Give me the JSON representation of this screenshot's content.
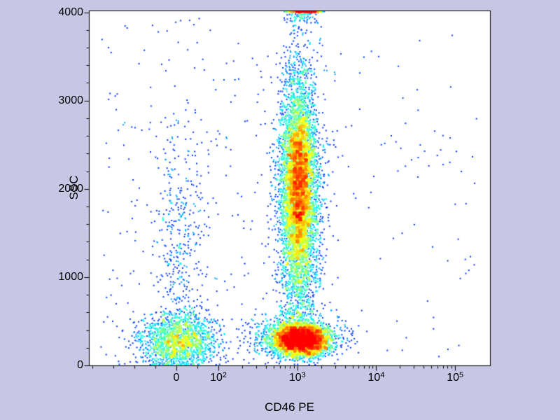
{
  "figure": {
    "background_color": "#c7c7e5",
    "plot_background": "#ffffff",
    "border_color": "#000000"
  },
  "chart_data": {
    "type": "scatter",
    "subtype": "flow-cytometry-pseudocolor-density",
    "title": "",
    "xlabel": "CD46 PE",
    "ylabel": "SSC",
    "legend": "none",
    "grid": false,
    "x_axis": {
      "scale": "biexponential",
      "linear_zero_frac": 0.218,
      "frac_at_100": 0.323,
      "decade_frac": 0.1967,
      "ticks": [
        {
          "value": 0,
          "label": "0"
        },
        {
          "value": 100,
          "base": "10",
          "exp": "2"
        },
        {
          "value": 1000,
          "base": "10",
          "exp": "3"
        },
        {
          "value": 10000,
          "base": "10",
          "exp": "4"
        },
        {
          "value": 100000,
          "base": "10",
          "exp": "5"
        }
      ],
      "minor_linear_step": 50,
      "minor_log_decades": [
        2,
        3,
        4
      ]
    },
    "y_axis": {
      "scale": "linear",
      "min": 0,
      "max": 4020,
      "ticks": [
        {
          "value": 0,
          "label": "0"
        },
        {
          "value": 1000,
          "label": "1000"
        },
        {
          "value": 2000,
          "label": "2000"
        },
        {
          "value": 3000,
          "label": "3000"
        },
        {
          "value": 4000,
          "label": "4000"
        }
      ],
      "minor_step": 200
    },
    "colormap": "jet",
    "density_cap": 45,
    "point_size": 2,
    "seed": 11,
    "populations": [
      {
        "name": "low-ssc-negative-cluster",
        "x_scale": "linear",
        "x_center": 5,
        "x_sigma": 45,
        "y_center": 270,
        "y_sigma": 160,
        "count": 1700,
        "clamp_bottom": true
      },
      {
        "name": "negative-sparse-column",
        "x_scale": "linear",
        "x_center": 10,
        "x_sigma": 30,
        "y_center": 1300,
        "y_sigma": 800,
        "count": 430
      },
      {
        "name": "cd46-positive-column-wide",
        "x_scale": "log",
        "x_center_log": 3.02,
        "x_sigma_log": 0.13,
        "y_center": 1900,
        "y_sigma": 750,
        "count": 5000
      },
      {
        "name": "cd46-positive-column-core",
        "x_scale": "log",
        "x_center_log": 3.02,
        "x_sigma_log": 0.085,
        "y_center": 2100,
        "y_sigma": 420,
        "count": 2200
      },
      {
        "name": "cd46-positive-low-ssc-band",
        "x_scale": "log",
        "x_center_log": 3.05,
        "x_sigma_log": 0.17,
        "y_center": 290,
        "y_sigma": 90,
        "count": 3800,
        "clamp_bottom": true
      },
      {
        "name": "low-ssc-band-spread",
        "x_scale": "log",
        "x_center_log": 2.95,
        "x_sigma_log": 0.3,
        "y_center": 320,
        "y_sigma": 120,
        "count": 800,
        "clamp_bottom": true
      },
      {
        "name": "offscale-top-pileup",
        "x_scale": "log",
        "x_center_log": 3.08,
        "x_sigma_log": 0.1,
        "y_center": 4150,
        "y_sigma": 120,
        "count": 800,
        "clamp_top": true
      },
      {
        "name": "background-scatter-left",
        "x_scale": "uniform",
        "x_frac_range": [
          0.03,
          0.62
        ],
        "y_range": [
          0,
          3950
        ],
        "count": 300
      },
      {
        "name": "background-scatter-right",
        "x_scale": "uniform",
        "x_frac_range": [
          0.62,
          0.97
        ],
        "y_range": [
          100,
          3800
        ],
        "count": 80
      }
    ]
  }
}
